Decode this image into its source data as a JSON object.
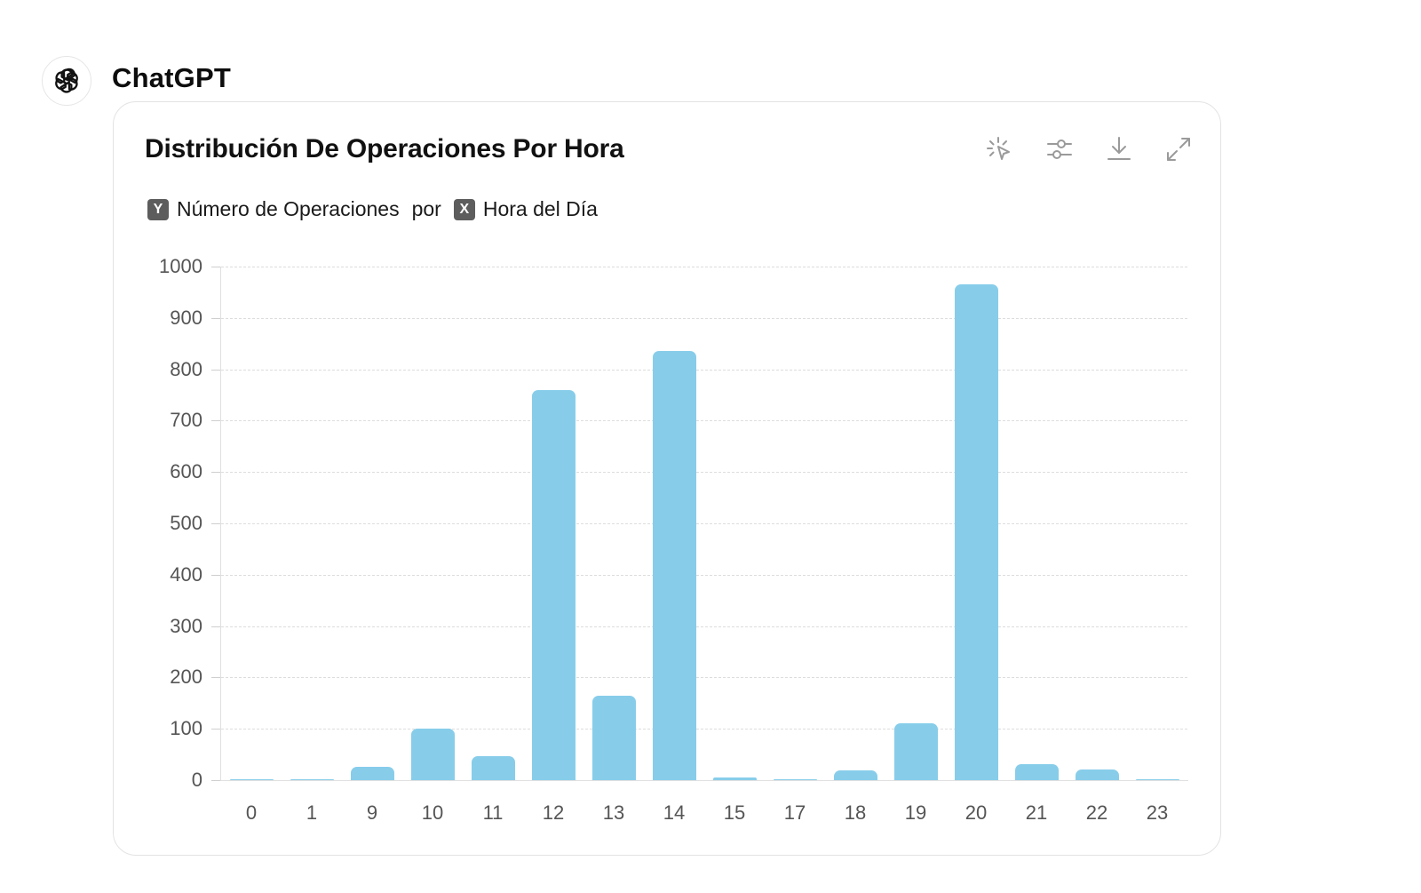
{
  "header": {
    "app_name": "ChatGPT",
    "avatar_icon": "openai-logo-icon"
  },
  "card": {
    "title": "Distribución De Operaciones Por Hora",
    "toolbar": [
      {
        "name": "interactive-icon",
        "label": "Switch to interactive chart"
      },
      {
        "name": "sliders-icon",
        "label": "Customize chart"
      },
      {
        "name": "download-icon",
        "label": "Download chart"
      },
      {
        "name": "expand-icon",
        "label": "Expand chart"
      }
    ],
    "axis_desc": {
      "y_badge": "Y",
      "y_label": "Número de Operaciones",
      "joiner": "por",
      "x_badge": "X",
      "x_label": "Hora del Día"
    }
  },
  "colors": {
    "bar": "#87cdea",
    "grid": "#dddddd",
    "badge": "#5d5d5d"
  },
  "chart_data": {
    "type": "bar",
    "title": "Distribución De Operaciones Por Hora",
    "xlabel": "Hora del Día",
    "ylabel": "Número de Operaciones",
    "categories": [
      "0",
      "1",
      "9",
      "10",
      "11",
      "12",
      "13",
      "14",
      "15",
      "17",
      "18",
      "19",
      "20",
      "21",
      "22",
      "23"
    ],
    "values": [
      1,
      1,
      26,
      101,
      47,
      760,
      165,
      835,
      5,
      1,
      19,
      110,
      965,
      31,
      21,
      1
    ],
    "ylim": [
      0,
      1000
    ],
    "yticks": [
      0,
      100,
      200,
      300,
      400,
      500,
      600,
      700,
      800,
      900,
      1000
    ],
    "grid": true,
    "legend": null
  }
}
